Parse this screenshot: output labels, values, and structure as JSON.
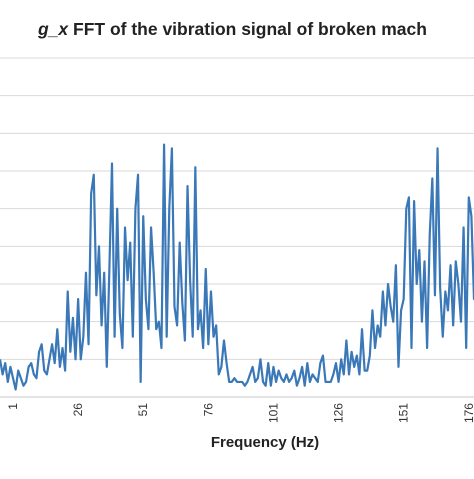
{
  "chart_data": {
    "type": "line",
    "title_var": "g_x",
    "title_rest": " FFT of the vibration signal of broken mach",
    "xlabel": "Frequency (Hz)",
    "ylabel": "",
    "x_tick_labels": [
      "1",
      "26",
      "51",
      "76",
      "101",
      "126",
      "151",
      "176"
    ],
    "x_tick_values": [
      1,
      26,
      51,
      76,
      101,
      126,
      151,
      176
    ],
    "xlim": [
      -4,
      178
    ],
    "ylim": [
      0,
      9
    ],
    "y_gridlines": [
      0,
      1,
      2,
      3,
      4,
      5,
      6,
      7,
      8,
      9
    ],
    "grid": true,
    "line_color": "#3b78b8",
    "series": [
      {
        "x_start": -4,
        "x_step": 1,
        "values": [
          1.0,
          0.6,
          0.9,
          0.4,
          0.8,
          0.5,
          0.2,
          0.7,
          0.5,
          0.3,
          0.4,
          0.8,
          0.9,
          0.6,
          0.5,
          1.2,
          1.4,
          0.7,
          0.6,
          1.0,
          1.4,
          0.9,
          1.8,
          0.8,
          1.3,
          0.7,
          2.8,
          1.2,
          2.1,
          1.0,
          2.6,
          1.0,
          1.6,
          3.3,
          1.4,
          5.4,
          5.9,
          2.7,
          4.0,
          1.9,
          3.3,
          0.8,
          3.4,
          6.2,
          1.6,
          5.0,
          2.2,
          1.3,
          4.5,
          3.1,
          4.1,
          1.6,
          5.0,
          5.9,
          0.4,
          4.8,
          2.6,
          1.8,
          4.5,
          3.3,
          1.8,
          2.0,
          1.3,
          6.7,
          1.6,
          5.0,
          6.6,
          2.4,
          1.9,
          4.1,
          2.5,
          1.5,
          5.6,
          3.1,
          1.6,
          6.1,
          1.8,
          2.3,
          1.3,
          3.4,
          1.4,
          2.8,
          1.6,
          1.9,
          0.6,
          0.8,
          1.5,
          0.9,
          0.4,
          0.4,
          0.5,
          0.4,
          0.4,
          0.4,
          0.3,
          0.4,
          0.6,
          0.8,
          0.4,
          0.5,
          1.0,
          0.4,
          0.3,
          0.9,
          0.3,
          0.8,
          0.4,
          0.7,
          0.5,
          0.4,
          0.6,
          0.4,
          0.5,
          0.7,
          0.3,
          0.5,
          0.8,
          0.3,
          0.9,
          0.4,
          0.6,
          0.5,
          0.4,
          0.9,
          1.1,
          0.4,
          0.4,
          0.4,
          0.6,
          0.9,
          0.4,
          1.0,
          0.6,
          1.5,
          0.6,
          1.2,
          0.8,
          1.1,
          0.6,
          1.8,
          0.7,
          0.7,
          1.1,
          2.3,
          1.3,
          1.9,
          1.6,
          2.8,
          1.9,
          3.0,
          2.4,
          2.0,
          3.5,
          0.8,
          2.3,
          2.6,
          5.0,
          5.3,
          1.3,
          5.2,
          3.0,
          3.9,
          2.0,
          3.6,
          1.3,
          4.3,
          5.8,
          2.7,
          6.6,
          2.9,
          1.6,
          2.8,
          2.3,
          3.5,
          1.9,
          3.6,
          3.0,
          2.0,
          4.5,
          1.3,
          5.3,
          4.8,
          2.6,
          2.9,
          5.4,
          2.0
        ]
      }
    ]
  }
}
